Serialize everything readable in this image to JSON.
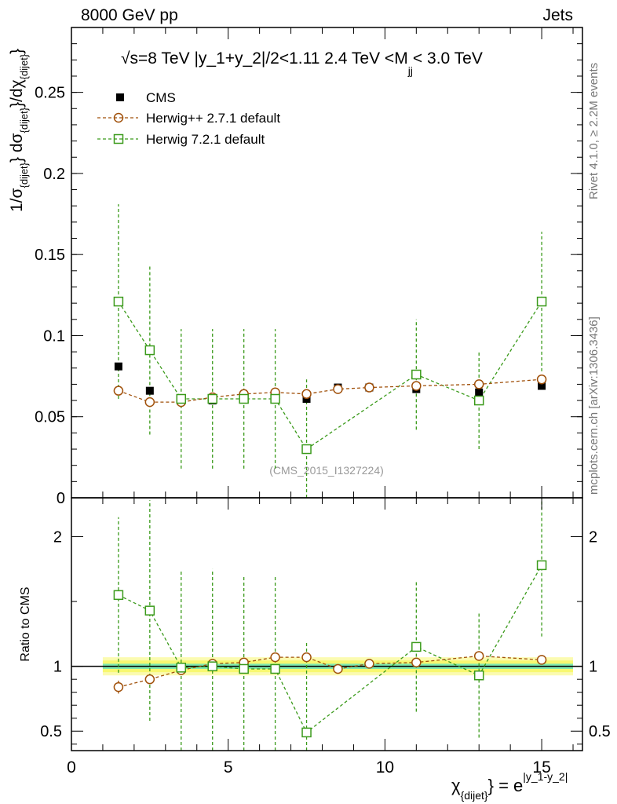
{
  "header": {
    "left": "8000 GeV pp",
    "right": "Jets"
  },
  "side_labels": {
    "rivet": "Rivet 4.1.0, ≥ 2.2M events",
    "mcplots": "mcplots.cern.ch [arXiv:1306.3436]"
  },
  "colors": {
    "cms": "#000000",
    "herwigpp": "#a0500a",
    "herwig7": "#3a9a1a",
    "band_inner": "#7de8b0",
    "band_outer": "#f8f870"
  },
  "chart_data": [
    {
      "type": "scatter",
      "title": "√s=8 TeV |y_1+y_2|/2<1.11 2.4 TeV <M_jj< 3.0 TeV",
      "title_parts": {
        "main": "√s=8 TeV |y_1+y_2|/2<1.11 2.4 TeV <M",
        "sub": "jj",
        "tail": "< 3.0 TeV"
      },
      "ylabel": "1/σ_{dijet} dσ_{dijet}/dχ_{dijet}",
      "ylabel_parts": {
        "a": "1/σ",
        "a_sub": "{dijet}",
        "b": "} dσ",
        "b_sub": "{dijet}",
        "c": "}/dχ",
        "c_sub": "{dijet}",
        "d": "}"
      },
      "watermark": "(CMS_2015_I1327224)",
      "xlim": [
        0,
        16.3
      ],
      "ylim": [
        0,
        0.29
      ],
      "yticks": [
        0,
        0.05,
        0.1,
        0.15,
        0.2,
        0.25
      ],
      "ytick_labels": [
        "0",
        "0.05",
        "0.1",
        "0.15",
        "0.2",
        "0.25"
      ],
      "legend_position": "top-left",
      "series": [
        {
          "name": "CMS",
          "x": [
            1.5,
            2.5,
            3.5,
            4.5,
            5.5,
            6.5,
            7.5,
            8.5,
            9.5,
            11,
            13,
            15
          ],
          "y": [
            0.081,
            0.066,
            0.061,
            0.06,
            0.061,
            0.061,
            0.061,
            0.068,
            0.068,
            0.067,
            0.065,
            0.069
          ]
        },
        {
          "name": "Herwig++ 2.7.1 default",
          "x": [
            1.5,
            2.5,
            3.5,
            4.5,
            5.5,
            6.5,
            7.5,
            8.5,
            9.5,
            11,
            13,
            15
          ],
          "y": [
            0.066,
            0.059,
            0.059,
            0.062,
            0.064,
            0.065,
            0.064,
            0.067,
            0.068,
            0.069,
            0.07,
            0.073
          ],
          "yerr": [
            0.002,
            0.002,
            0.002,
            0.002,
            0.002,
            0.002,
            0.002,
            0.002,
            0.002,
            0.002,
            0.002,
            0.002
          ]
        },
        {
          "name": "Herwig 7.2.1 default",
          "x": [
            1.5,
            2.5,
            3.5,
            4.5,
            5.5,
            6.5,
            7.5,
            11,
            13,
            15
          ],
          "y": [
            0.121,
            0.091,
            0.061,
            0.061,
            0.061,
            0.061,
            0.03,
            0.076,
            0.06,
            0.121
          ],
          "yerr": [
            0.06,
            0.052,
            0.043,
            0.043,
            0.043,
            0.043,
            0.043,
            0.034,
            0.03,
            0.043
          ]
        }
      ]
    },
    {
      "type": "scatter",
      "ylabel": "Ratio to CMS",
      "xlabel": "χ_{dijet} = e^{|y_1-y_2|}",
      "xlabel_parts": {
        "chi": "χ",
        "chi_sub": "{dijet}",
        "eq": "} = e",
        "exp": "|y_1-y_2|"
      },
      "xlim": [
        0,
        16.3
      ],
      "ylim": [
        0.35,
        2.3
      ],
      "yticks": [
        0.5,
        1,
        2
      ],
      "ytick_labels": [
        "0.5",
        "1",
        "2"
      ],
      "xticks": [
        0,
        5,
        10,
        15
      ],
      "xtick_labels": [
        "0",
        "5",
        "10",
        "15"
      ],
      "band": {
        "x": [
          1,
          16
        ],
        "inner": [
          0.98,
          1.02
        ],
        "outer": [
          0.955,
          1.045
        ],
        "outer2": [
          0.93,
          1.07
        ]
      },
      "series": [
        {
          "name": "Herwig++ 2.7.1 default",
          "x": [
            1.5,
            2.5,
            3.5,
            4.5,
            5.5,
            6.5,
            7.5,
            8.5,
            9.5,
            11,
            13,
            15
          ],
          "y": [
            0.84,
            0.9,
            0.97,
            1.02,
            1.03,
            1.07,
            1.07,
            0.98,
            1.02,
            1.03,
            1.08,
            1.05
          ],
          "yerr": [
            0.05,
            0.02,
            0.02,
            0.02,
            0.02,
            0.02,
            0.02,
            0.02,
            0.02,
            0.02,
            0.02,
            0.02
          ]
        },
        {
          "name": "Herwig 7.2.1 default",
          "x": [
            1.5,
            2.5,
            3.5,
            4.5,
            5.5,
            6.5,
            7.5,
            11,
            13,
            15
          ],
          "y": [
            1.55,
            1.43,
            0.99,
            1.0,
            0.98,
            0.98,
            0.49,
            1.15,
            0.93,
            1.78
          ],
          "yerr": [
            0.6,
            0.85,
            0.75,
            0.75,
            0.72,
            0.72,
            0.7,
            0.5,
            0.48,
            0.55
          ]
        }
      ]
    }
  ]
}
